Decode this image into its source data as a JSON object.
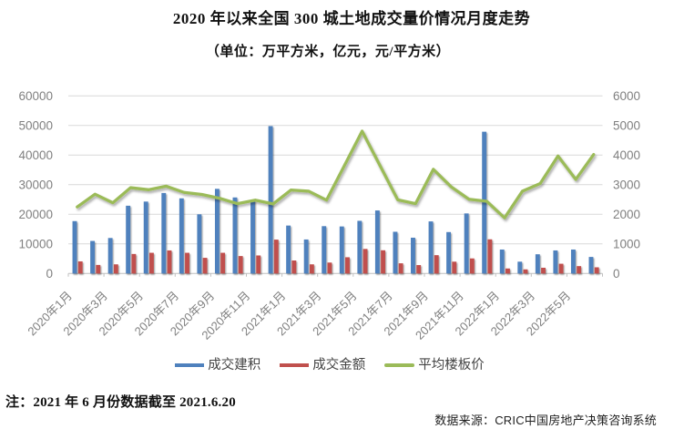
{
  "title": "2020 年以来全国 300 城土地成交量价情况月度走势",
  "subtitle": "（单位：万平方米，亿元，元/平方米）",
  "note": "注：2021 年 6 月份数据截至 2021.6.20",
  "source": "数据来源：CRIC中国房地产决策咨询系统",
  "colors": {
    "bar_area": "#4F81BD",
    "bar_amount": "#C0504D",
    "line_price": "#9BBB59",
    "gridline": "#D9D9D9",
    "axis_line": "#BFBFBF",
    "axis_text": "#808080",
    "legend_text": "#444444",
    "background": "#FFFFFF"
  },
  "legend": {
    "items": [
      {
        "label": "成交建积",
        "type": "bar",
        "color": "#4F81BD"
      },
      {
        "label": "成交金额",
        "type": "bar",
        "color": "#C0504D"
      },
      {
        "label": "平均楼板价",
        "type": "line",
        "color": "#9BBB59"
      }
    ]
  },
  "chart_data": {
    "type": "bar",
    "subtype": "grouped bars + line, dual axis",
    "title": "2020 年以来全国 300 城土地成交量价情况月度走势",
    "subtitle_units": "万平方米，亿元，元/平方米",
    "categories": [
      "2020年1月",
      "2020年2月",
      "2020年3月",
      "2020年4月",
      "2020年5月",
      "2020年6月",
      "2020年7月",
      "2020年8月",
      "2020年9月",
      "2020年10月",
      "2020年11月",
      "2020年12月",
      "2021年1月",
      "2021年2月",
      "2021年3月",
      "2021年4月",
      "2021年5月",
      "2021年6月",
      "2021年7月",
      "2021年8月",
      "2021年9月",
      "2021年10月",
      "2021年11月",
      "2021年12月",
      "2022年1月",
      "2022年2月",
      "2022年3月",
      "2022年4月",
      "2022年5月",
      "2022年6月"
    ],
    "x_tick_labels": [
      "2020年1月",
      "2020年3月",
      "2020年5月",
      "2020年7月",
      "2020年9月",
      "2020年11月",
      "2021年1月",
      "2021年3月",
      "2021年5月",
      "2021年7月",
      "2021年9月",
      "2021年11月",
      "2022年1月",
      "2022年3月",
      "2022年5月"
    ],
    "series": [
      {
        "name": "成交建积",
        "type": "bar",
        "axis": "left",
        "color": "#4F81BD",
        "values": [
          17700,
          11000,
          12000,
          22900,
          24300,
          27200,
          25400,
          20000,
          28600,
          25700,
          24700,
          49800,
          16200,
          11500,
          16000,
          15900,
          17800,
          21300,
          14100,
          12100,
          17600,
          14000,
          20300,
          47900,
          8100,
          4000,
          6500,
          7800,
          8100,
          5600
        ]
      },
      {
        "name": "成交金额",
        "type": "bar",
        "axis": "left",
        "color": "#C0504D",
        "values": [
          4100,
          2900,
          3100,
          6600,
          7000,
          7800,
          7000,
          5300,
          7000,
          5900,
          6100,
          11450,
          4400,
          3100,
          3700,
          5500,
          8300,
          7850,
          3450,
          2850,
          6200,
          4000,
          5100,
          11550,
          1700,
          1400,
          1950,
          3300,
          2500,
          2100
        ]
      },
      {
        "name": "平均楼板价",
        "type": "line",
        "axis": "right",
        "color": "#9BBB59",
        "values": [
          2250,
          2680,
          2390,
          2900,
          2830,
          2950,
          2740,
          2670,
          2540,
          2360,
          2480,
          2350,
          2820,
          2780,
          2480,
          3640,
          4810,
          3650,
          2490,
          2360,
          3520,
          2930,
          2510,
          2440,
          1880,
          2780,
          3040,
          3970,
          3180,
          4020
        ]
      }
    ],
    "left_axis": {
      "min": 0,
      "max": 60000,
      "step": 10000,
      "tick_labels": [
        "0",
        "10000",
        "20000",
        "30000",
        "40000",
        "50000",
        "60000"
      ]
    },
    "right_axis": {
      "min": 0,
      "max": 6000,
      "step": 1000,
      "tick_labels": [
        "0",
        "1000",
        "2000",
        "3000",
        "4000",
        "5000",
        "6000"
      ]
    },
    "grid": "horizontal",
    "legend_position": "bottom"
  }
}
